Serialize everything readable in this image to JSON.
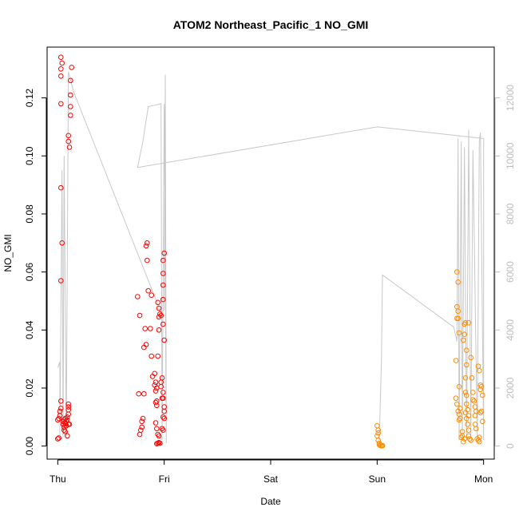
{
  "chart_data": {
    "type": "scatter",
    "title": "ATOM2 Northeast_Pacific_1 NO_GMI",
    "xlabel": "Date",
    "ylabel": "NO_GMI",
    "x_unit": "days since Thu",
    "xlim": [
      -0.1,
      4.1
    ],
    "ylim": [
      -0.0045,
      0.1375
    ],
    "right_ylim": [
      -450,
      13750
    ],
    "x_ticks": [
      {
        "value": 0,
        "label": "Thu"
      },
      {
        "value": 1,
        "label": "Fri"
      },
      {
        "value": 2,
        "label": "Sat"
      },
      {
        "value": 3,
        "label": "Sun"
      },
      {
        "value": 4,
        "label": "Mon"
      }
    ],
    "y_ticks": [
      {
        "value": 0.0,
        "label": "0.00"
      },
      {
        "value": 0.02,
        "label": "0.02"
      },
      {
        "value": 0.04,
        "label": "0.04"
      },
      {
        "value": 0.06,
        "label": "0.06"
      },
      {
        "value": 0.08,
        "label": "0.08"
      },
      {
        "value": 0.1,
        "label": "0.10"
      },
      {
        "value": 0.12,
        "label": "0.12"
      }
    ],
    "right_y_ticks": [
      {
        "value": 0,
        "label": "0"
      },
      {
        "value": 2000,
        "label": "2000"
      },
      {
        "value": 4000,
        "label": "4000"
      },
      {
        "value": 6000,
        "label": "6000"
      },
      {
        "value": 8000,
        "label": "8000"
      },
      {
        "value": 10000,
        "label": "10000"
      },
      {
        "value": 12000,
        "label": "12000"
      }
    ],
    "colors": {
      "altitude": "#c8c8c8",
      "flight1": "#ff0000",
      "flight2": "#ff8c00",
      "axis": "#000000",
      "right_axis": "#bdbdbd"
    },
    "altitude_line": [
      [
        0.0,
        2700
      ],
      [
        0.02,
        2900
      ],
      [
        0.02,
        200
      ],
      [
        0.04,
        9500
      ],
      [
        0.05,
        300
      ],
      [
        0.06,
        10000
      ],
      [
        0.08,
        300
      ],
      [
        0.1,
        12900
      ],
      [
        0.15,
        12200
      ],
      [
        0.97,
        4600
      ],
      [
        1.0,
        4700
      ],
      [
        1.01,
        12800
      ],
      [
        1.02,
        100
      ],
      [
        1.0,
        11800
      ],
      [
        0.98,
        200
      ],
      [
        0.97,
        11800
      ],
      [
        0.85,
        11700
      ],
      [
        0.82,
        11000
      ],
      [
        0.8,
        10500
      ],
      [
        0.75,
        9600
      ],
      [
        3.0,
        11000
      ],
      [
        4.0,
        10600
      ],
      [
        4.0,
        200
      ],
      [
        3.97,
        10800
      ],
      [
        3.96,
        10500
      ],
      [
        3.94,
        300
      ],
      [
        3.9,
        10200
      ],
      [
        3.88,
        300
      ],
      [
        3.86,
        10900
      ],
      [
        3.84,
        200
      ],
      [
        3.82,
        10300
      ],
      [
        3.8,
        200
      ],
      [
        3.79,
        10500
      ],
      [
        3.77,
        200
      ],
      [
        3.76,
        10600
      ],
      [
        3.75,
        3600
      ],
      [
        3.72,
        4100
      ],
      [
        3.05,
        5900
      ],
      [
        3.04,
        2900
      ],
      [
        3.02,
        200
      ]
    ],
    "series": [
      {
        "color": "#ff0000",
        "points": [
          [
            0.0,
            0.0025
          ],
          [
            0.01,
            0.0028
          ],
          [
            0.0,
            0.009
          ],
          [
            0.01,
            0.0095
          ],
          [
            0.02,
            0.0105
          ],
          [
            0.02,
            0.012
          ],
          [
            0.03,
            0.013
          ],
          [
            0.03,
            0.0155
          ],
          [
            0.03,
            0.118
          ],
          [
            0.03,
            0.089
          ],
          [
            0.04,
            0.07
          ],
          [
            0.03,
            0.057
          ],
          [
            0.03,
            0.134
          ],
          [
            0.04,
            0.132
          ],
          [
            0.03,
            0.13
          ],
          [
            0.03,
            0.1275
          ],
          [
            0.05,
            0.0085
          ],
          [
            0.05,
            0.0075
          ],
          [
            0.06,
            0.0055
          ],
          [
            0.06,
            0.0065
          ],
          [
            0.07,
            0.005
          ],
          [
            0.07,
            0.008
          ],
          [
            0.08,
            0.0085
          ],
          [
            0.09,
            0.009
          ],
          [
            0.09,
            0.01
          ],
          [
            0.08,
            0.007
          ],
          [
            0.1,
            0.011
          ],
          [
            0.1,
            0.0125
          ],
          [
            0.1,
            0.0145
          ],
          [
            0.1,
            0.0135
          ],
          [
            0.1,
            0.0075
          ],
          [
            0.11,
            0.0075
          ],
          [
            0.09,
            0.0035
          ],
          [
            0.1,
            0.107
          ],
          [
            0.1,
            0.105
          ],
          [
            0.11,
            0.103
          ],
          [
            0.12,
            0.114
          ],
          [
            0.12,
            0.117
          ],
          [
            0.12,
            0.121
          ],
          [
            0.12,
            0.126
          ],
          [
            0.13,
            0.1305
          ],
          [
            0.06,
            0.009
          ],
          [
            0.07,
            0.0095
          ],
          [
            0.08,
            0.007
          ],
          [
            0.75,
            0.0515
          ],
          [
            0.77,
            0.045
          ],
          [
            0.76,
            0.018
          ],
          [
            0.78,
            0.0055
          ],
          [
            0.79,
            0.0065
          ],
          [
            0.77,
            0.004
          ],
          [
            0.79,
            0.0085
          ],
          [
            0.8,
            0.0095
          ],
          [
            0.81,
            0.018
          ],
          [
            0.81,
            0.034
          ],
          [
            0.82,
            0.0405
          ],
          [
            0.83,
            0.035
          ],
          [
            0.83,
            0.069
          ],
          [
            0.84,
            0.07
          ],
          [
            0.84,
            0.064
          ],
          [
            0.85,
            0.0535
          ],
          [
            0.88,
            0.052
          ],
          [
            0.87,
            0.0405
          ],
          [
            0.88,
            0.031
          ],
          [
            0.89,
            0.024
          ],
          [
            0.91,
            0.025
          ],
          [
            0.91,
            0.021
          ],
          [
            0.92,
            0.019
          ],
          [
            0.92,
            0.022
          ],
          [
            0.93,
            0.02
          ],
          [
            0.92,
            0.015
          ],
          [
            0.93,
            0.0155
          ],
          [
            0.93,
            0.014
          ],
          [
            0.92,
            0.008
          ],
          [
            0.93,
            0.006
          ],
          [
            0.94,
            0.004
          ],
          [
            0.95,
            0.0035
          ],
          [
            0.93,
            0.0008
          ],
          [
            0.94,
            0.001
          ],
          [
            0.95,
            0.0012
          ],
          [
            0.96,
            0.001
          ],
          [
            0.94,
            0.0495
          ],
          [
            0.95,
            0.0475
          ],
          [
            0.95,
            0.0445
          ],
          [
            0.96,
            0.0455
          ],
          [
            0.97,
            0.045
          ],
          [
            0.95,
            0.04
          ],
          [
            0.94,
            0.031
          ],
          [
            0.97,
            0.0205
          ],
          [
            0.97,
            0.022
          ],
          [
            0.98,
            0.0235
          ],
          [
            0.99,
            0.0185
          ],
          [
            0.99,
            0.0165
          ],
          [
            1.0,
            0.0135
          ],
          [
            1.0,
            0.012
          ],
          [
            0.99,
            0.01
          ],
          [
            1.0,
            0.0095
          ],
          [
            0.99,
            0.0055
          ],
          [
            0.98,
            0.006
          ],
          [
            0.99,
            0.042
          ],
          [
            1.0,
            0.0365
          ],
          [
            0.99,
            0.0555
          ],
          [
            0.99,
            0.0595
          ],
          [
            0.99,
            0.064
          ],
          [
            1.0,
            0.0665
          ],
          [
            0.99,
            0.0505
          ],
          [
            0.98,
            0.0165
          ]
        ]
      },
      {
        "color": "#ff8c00",
        "points": [
          [
            3.0,
            0.007
          ],
          [
            3.01,
            0.0045
          ],
          [
            3.01,
            0.0055
          ],
          [
            3.0,
            0.0035
          ],
          [
            3.01,
            0.002
          ],
          [
            3.02,
            0.001
          ],
          [
            3.02,
            0.0005
          ],
          [
            3.03,
            0.0002
          ],
          [
            3.04,
            0.0001
          ],
          [
            3.05,
            0.0002
          ],
          [
            3.03,
            0.0003
          ],
          [
            3.05,
            0.0001
          ],
          [
            3.74,
            0.0295
          ],
          [
            3.75,
            0.06
          ],
          [
            3.76,
            0.0565
          ],
          [
            3.75,
            0.048
          ],
          [
            3.76,
            0.0465
          ],
          [
            3.75,
            0.044
          ],
          [
            3.76,
            0.044
          ],
          [
            3.77,
            0.039
          ],
          [
            3.74,
            0.0165
          ],
          [
            3.75,
            0.0145
          ],
          [
            3.76,
            0.012
          ],
          [
            3.77,
            0.011
          ],
          [
            3.77,
            0.009
          ],
          [
            3.78,
            0.0095
          ],
          [
            3.78,
            0.013
          ],
          [
            3.77,
            0.0205
          ],
          [
            3.79,
            0.003
          ],
          [
            3.8,
            0.0035
          ],
          [
            3.8,
            0.005
          ],
          [
            3.81,
            0.0015
          ],
          [
            3.82,
            0.0025
          ],
          [
            3.82,
            0.042
          ],
          [
            3.83,
            0.0425
          ],
          [
            3.82,
            0.0385
          ],
          [
            3.81,
            0.0365
          ],
          [
            3.83,
            0.0235
          ],
          [
            3.84,
            0.028
          ],
          [
            3.84,
            0.033
          ],
          [
            3.83,
            0.0185
          ],
          [
            3.84,
            0.0175
          ],
          [
            3.84,
            0.0145
          ],
          [
            3.85,
            0.0125
          ],
          [
            3.83,
            0.0115
          ],
          [
            3.86,
            0.0105
          ],
          [
            3.84,
            0.0095
          ],
          [
            3.85,
            0.0075
          ],
          [
            3.86,
            0.0055
          ],
          [
            3.86,
            0.0035
          ],
          [
            3.87,
            0.0025
          ],
          [
            3.88,
            0.002
          ],
          [
            3.86,
            0.0425
          ],
          [
            3.88,
            0.0305
          ],
          [
            3.89,
            0.0235
          ],
          [
            3.9,
            0.0185
          ],
          [
            3.9,
            0.016
          ],
          [
            3.91,
            0.0155
          ],
          [
            3.92,
            0.0135
          ],
          [
            3.93,
            0.012
          ],
          [
            3.92,
            0.0105
          ],
          [
            3.92,
            0.0075
          ],
          [
            3.93,
            0.006
          ],
          [
            3.94,
            0.0025
          ],
          [
            3.95,
            0.002
          ],
          [
            3.96,
            0.0015
          ],
          [
            3.96,
            0.003
          ],
          [
            3.97,
            0.0115
          ],
          [
            3.95,
            0.0275
          ],
          [
            3.96,
            0.026
          ],
          [
            3.97,
            0.021
          ],
          [
            3.98,
            0.0205
          ],
          [
            3.99,
            0.0175
          ],
          [
            3.98,
            0.012
          ],
          [
            3.99,
            0.0085
          ],
          [
            3.97,
            0.0195
          ]
        ]
      }
    ]
  }
}
